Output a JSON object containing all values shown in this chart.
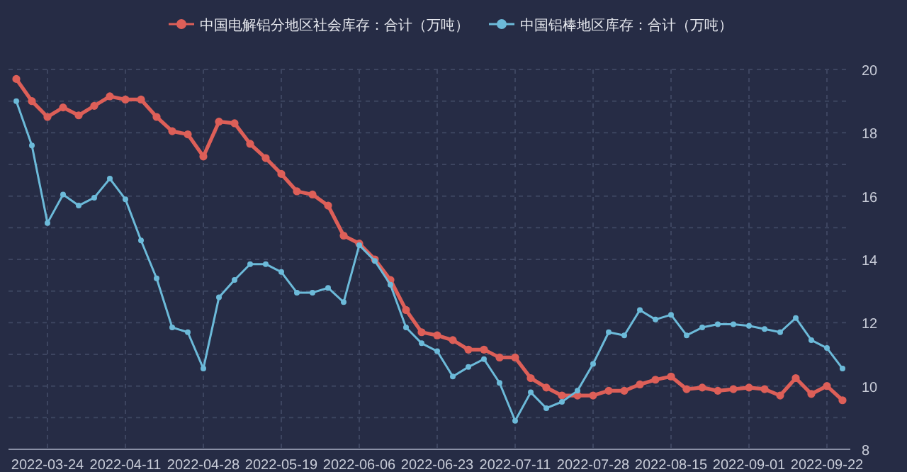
{
  "chart_data": {
    "type": "line",
    "categories": [
      null,
      null,
      "2022-03-24",
      null,
      null,
      null,
      null,
      "2022-04-11",
      null,
      null,
      null,
      null,
      "2022-04-28",
      null,
      null,
      null,
      null,
      "2022-05-19",
      null,
      null,
      null,
      null,
      "2022-06-06",
      null,
      null,
      null,
      null,
      "2022-06-23",
      null,
      null,
      null,
      null,
      "2022-07-11",
      null,
      null,
      null,
      null,
      "2022-07-28",
      null,
      null,
      null,
      null,
      "2022-08-15",
      null,
      null,
      null,
      null,
      "2022-09-01",
      null,
      null,
      null,
      null,
      "2022-09-22",
      null
    ],
    "series": [
      {
        "name": "中国电解铝分地区社会库存：合计（万吨）",
        "color": "#dd5f58",
        "values": [
          19.7,
          19.0,
          18.5,
          18.8,
          18.55,
          18.85,
          19.15,
          19.05,
          19.05,
          18.5,
          18.05,
          17.95,
          17.25,
          18.35,
          18.3,
          17.65,
          17.2,
          16.7,
          16.15,
          16.05,
          15.7,
          14.75,
          14.5,
          14.0,
          13.35,
          12.4,
          11.7,
          11.6,
          11.45,
          11.15,
          11.15,
          10.9,
          10.9,
          10.25,
          9.95,
          9.7,
          9.7,
          9.7,
          9.85,
          9.85,
          10.05,
          10.2,
          10.3,
          9.9,
          9.95,
          9.85,
          9.9,
          9.95,
          9.9,
          9.7,
          10.25,
          9.75,
          10.0,
          9.55
        ]
      },
      {
        "name": "中国铝棒地区库存：合计（万吨）",
        "color": "#6cbad9",
        "values": [
          19.0,
          17.6,
          15.15,
          16.05,
          15.7,
          15.95,
          16.55,
          15.9,
          14.6,
          13.4,
          11.85,
          11.7,
          10.55,
          12.8,
          13.35,
          13.85,
          13.85,
          13.6,
          12.95,
          12.95,
          13.1,
          12.65,
          14.45,
          13.95,
          13.2,
          11.85,
          11.35,
          11.1,
          10.3,
          10.6,
          10.85,
          10.1,
          8.9,
          9.8,
          9.3,
          9.5,
          9.85,
          10.7,
          11.7,
          11.6,
          12.4,
          12.1,
          12.25,
          11.6,
          11.85,
          11.95,
          11.95,
          11.9,
          11.8,
          11.7,
          12.15,
          11.45,
          11.2,
          10.55
        ]
      }
    ],
    "ylim": [
      8,
      20
    ],
    "yticks": [
      8,
      {
        "value": 9,
        "label": null
      },
      10,
      {
        "value": 11,
        "label": null
      },
      12,
      {
        "value": 13,
        "label": null
      },
      14,
      {
        "value": 15,
        "label": null
      },
      16,
      {
        "value": 17,
        "label": null
      },
      18,
      {
        "value": 19,
        "label": null
      },
      20
    ],
    "grid": true,
    "legend": "top",
    "marker": "circle",
    "line_style": "solid"
  }
}
